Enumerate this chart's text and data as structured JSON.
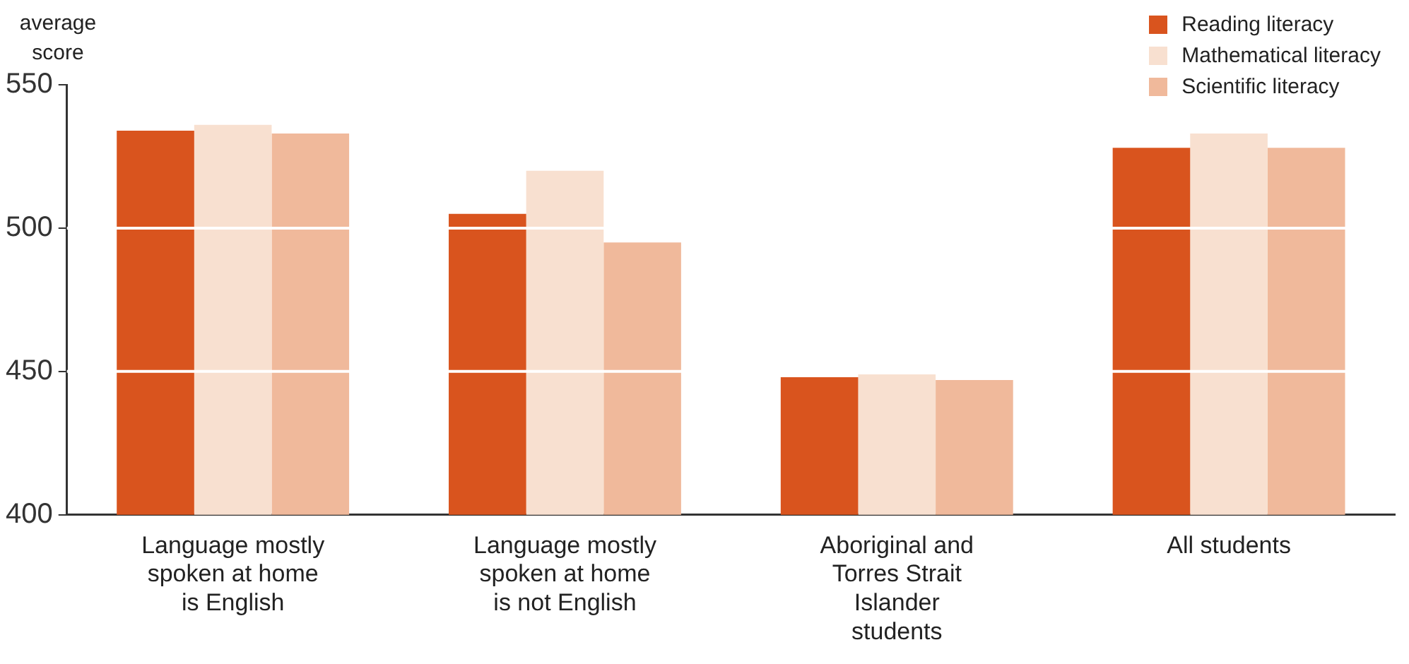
{
  "chart_data": {
    "type": "bar",
    "ylabel": "average score",
    "categories": [
      "Language mostly spoken at home is English",
      "Language mostly spoken at home is not English",
      "Aboriginal and Torres Strait Islander students",
      "All students"
    ],
    "series": [
      {
        "name": "Reading literacy",
        "color": "#d9541e",
        "values": [
          534,
          505,
          448,
          528
        ]
      },
      {
        "name": "Mathematical literacy",
        "color": "#f8e0d0",
        "values": [
          536,
          520,
          449,
          533
        ]
      },
      {
        "name": "Scientific literacy",
        "color": "#f0b99b",
        "values": [
          533,
          495,
          447,
          528
        ]
      }
    ],
    "ylim": [
      400,
      550
    ],
    "yticks": [
      400,
      450,
      500,
      550
    ],
    "grid": "y",
    "legend": "top right"
  }
}
